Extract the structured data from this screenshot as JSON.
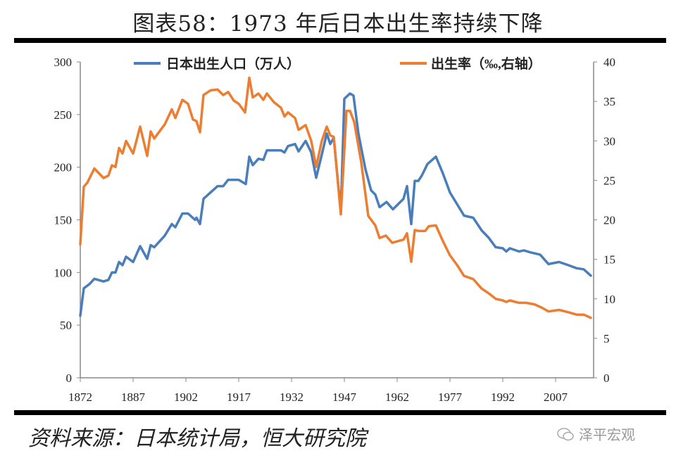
{
  "title": "图表58：1973 年后日本出生率持续下降",
  "source": "资料来源：日本统计局，恒大研究院",
  "watermark": "泽平宏观",
  "chart_data": {
    "type": "line",
    "title": "图表58：1973 年后日本出生率持续下降",
    "xlabel": "",
    "ylabel_left": "",
    "ylabel_right": "",
    "xlim": [
      1872,
      2017
    ],
    "x_ticks": [
      "1872",
      "1887",
      "1902",
      "1917",
      "1932",
      "1947",
      "1962",
      "1977",
      "1992",
      "2007"
    ],
    "ylim_left": [
      0,
      300
    ],
    "y_ticks_left": [
      "0",
      "50",
      "100",
      "150",
      "200",
      "250",
      "300"
    ],
    "ylim_right": [
      0,
      40
    ],
    "y_ticks_right": [
      "0",
      "5",
      "10",
      "15",
      "20",
      "25",
      "30",
      "35",
      "40"
    ],
    "grid": false,
    "legend_position": "top",
    "series": [
      {
        "name": "日本出生人口（万人）",
        "axis": "left",
        "color": "#4a7ebb",
        "points": [
          [
            1872,
            59
          ],
          [
            1873,
            85
          ],
          [
            1874.6,
            89
          ],
          [
            1876,
            94
          ],
          [
            1878.6,
            91.5
          ],
          [
            1880,
            93
          ],
          [
            1881,
            100
          ],
          [
            1882,
            100
          ],
          [
            1883,
            110
          ],
          [
            1884,
            107
          ],
          [
            1885,
            115
          ],
          [
            1887,
            110
          ],
          [
            1889,
            125
          ],
          [
            1891,
            113
          ],
          [
            1892,
            126
          ],
          [
            1893,
            124
          ],
          [
            1896,
            135
          ],
          [
            1898,
            146
          ],
          [
            1899,
            143
          ],
          [
            1901,
            156
          ],
          [
            1902.6,
            156
          ],
          [
            1904.6,
            150
          ],
          [
            1905,
            152
          ],
          [
            1906,
            146
          ],
          [
            1907,
            170
          ],
          [
            1909,
            176
          ],
          [
            1911,
            182
          ],
          [
            1912.6,
            182
          ],
          [
            1914,
            188
          ],
          [
            1917,
            188
          ],
          [
            1919,
            184
          ],
          [
            1920,
            210
          ],
          [
            1921,
            202
          ],
          [
            1922.6,
            208
          ],
          [
            1924,
            207
          ],
          [
            1925,
            216
          ],
          [
            1927,
            216
          ],
          [
            1929,
            216
          ],
          [
            1930,
            214
          ],
          [
            1931,
            220
          ],
          [
            1933,
            222
          ],
          [
            1934,
            215
          ],
          [
            1936,
            225
          ],
          [
            1937.6,
            214
          ],
          [
            1939,
            190
          ],
          [
            1940.6,
            212
          ],
          [
            1942,
            232
          ],
          [
            1943,
            222
          ],
          [
            1944,
            228
          ],
          [
            1946,
            157
          ],
          [
            1947,
            265
          ],
          [
            1948.6,
            270
          ],
          [
            1949.6,
            268
          ],
          [
            1951,
            232
          ],
          [
            1953,
            198
          ],
          [
            1954.6,
            178
          ],
          [
            1955.8,
            174
          ],
          [
            1957,
            162
          ],
          [
            1959,
            167
          ],
          [
            1960.8,
            160
          ],
          [
            1963.8,
            170
          ],
          [
            1964.8,
            182
          ],
          [
            1966,
            146
          ],
          [
            1967,
            187
          ],
          [
            1968,
            187
          ],
          [
            1969,
            192
          ],
          [
            1970.6,
            203
          ],
          [
            1973,
            210
          ],
          [
            1975,
            194
          ],
          [
            1977,
            176
          ],
          [
            1979,
            165
          ],
          [
            1981,
            154
          ],
          [
            1983.6,
            152
          ],
          [
            1986,
            140
          ],
          [
            1988,
            133
          ],
          [
            1990,
            124
          ],
          [
            1992,
            123
          ],
          [
            1993,
            120
          ],
          [
            1994,
            123
          ],
          [
            1996.6,
            120
          ],
          [
            1998,
            121
          ],
          [
            2000,
            119
          ],
          [
            2002.6,
            117
          ],
          [
            2005,
            108
          ],
          [
            2008,
            110
          ],
          [
            2010.6,
            107
          ],
          [
            2013,
            104
          ],
          [
            2015,
            103
          ],
          [
            2017,
            97
          ]
        ]
      },
      {
        "name": "出生率（‰,右轴）",
        "axis": "right",
        "color": "#ed7d31",
        "points": [
          [
            1872,
            16.9
          ],
          [
            1873,
            24.2
          ],
          [
            1874,
            24.7
          ],
          [
            1876,
            26.5
          ],
          [
            1878.6,
            25.3
          ],
          [
            1880,
            25.6
          ],
          [
            1881,
            26.9
          ],
          [
            1882,
            26.7
          ],
          [
            1883,
            29.1
          ],
          [
            1884,
            28.4
          ],
          [
            1885,
            30.0
          ],
          [
            1887,
            28.4
          ],
          [
            1889,
            31.8
          ],
          [
            1891,
            28.1
          ],
          [
            1892,
            31.2
          ],
          [
            1893,
            30.3
          ],
          [
            1896,
            32.1
          ],
          [
            1898,
            34.0
          ],
          [
            1899,
            32.9
          ],
          [
            1901,
            35.2
          ],
          [
            1902.6,
            34.7
          ],
          [
            1904,
            32.7
          ],
          [
            1905,
            32.5
          ],
          [
            1906,
            31.1
          ],
          [
            1907,
            35.8
          ],
          [
            1909,
            36.4
          ],
          [
            1911,
            36.5
          ],
          [
            1912.6,
            35.8
          ],
          [
            1914,
            36.2
          ],
          [
            1915.6,
            35.1
          ],
          [
            1917,
            34.7
          ],
          [
            1918.8,
            33.6
          ],
          [
            1920,
            38.0
          ],
          [
            1921,
            35.5
          ],
          [
            1922.6,
            36.0
          ],
          [
            1924,
            35.2
          ],
          [
            1925,
            36.0
          ],
          [
            1927,
            34.9
          ],
          [
            1929,
            34.2
          ],
          [
            1930,
            33.1
          ],
          [
            1931,
            33.6
          ],
          [
            1933,
            32.9
          ],
          [
            1934,
            31.4
          ],
          [
            1936,
            32.0
          ],
          [
            1937.6,
            30.0
          ],
          [
            1939,
            26.7
          ],
          [
            1940.6,
            30.0
          ],
          [
            1942,
            31.8
          ],
          [
            1943,
            30.7
          ],
          [
            1944,
            30.5
          ],
          [
            1946,
            20.7
          ],
          [
            1947.6,
            33.8
          ],
          [
            1948.6,
            33.8
          ],
          [
            1949.8,
            32.4
          ],
          [
            1951.8,
            27.3
          ],
          [
            1953.8,
            20.5
          ],
          [
            1955.8,
            19.3
          ],
          [
            1957,
            17.7
          ],
          [
            1958.8,
            18.0
          ],
          [
            1960.6,
            17.1
          ],
          [
            1963.8,
            17.5
          ],
          [
            1964.8,
            18.3
          ],
          [
            1966,
            14.7
          ],
          [
            1967,
            18.7
          ],
          [
            1968,
            18.6
          ],
          [
            1970,
            18.6
          ],
          [
            1971,
            19.2
          ],
          [
            1973,
            19.3
          ],
          [
            1975,
            17.3
          ],
          [
            1977,
            15.5
          ],
          [
            1979,
            14.3
          ],
          [
            1981,
            12.9
          ],
          [
            1983.6,
            12.5
          ],
          [
            1986,
            11.3
          ],
          [
            1988,
            10.7
          ],
          [
            1990,
            10.0
          ],
          [
            1992,
            9.8
          ],
          [
            1993,
            9.6
          ],
          [
            1994,
            9.8
          ],
          [
            1996.6,
            9.5
          ],
          [
            1998.6,
            9.5
          ],
          [
            2001,
            9.3
          ],
          [
            2003,
            8.9
          ],
          [
            2005,
            8.4
          ],
          [
            2008,
            8.6
          ],
          [
            2010.6,
            8.3
          ],
          [
            2013,
            8.0
          ],
          [
            2015,
            8.0
          ],
          [
            2017,
            7.6
          ]
        ]
      }
    ]
  }
}
